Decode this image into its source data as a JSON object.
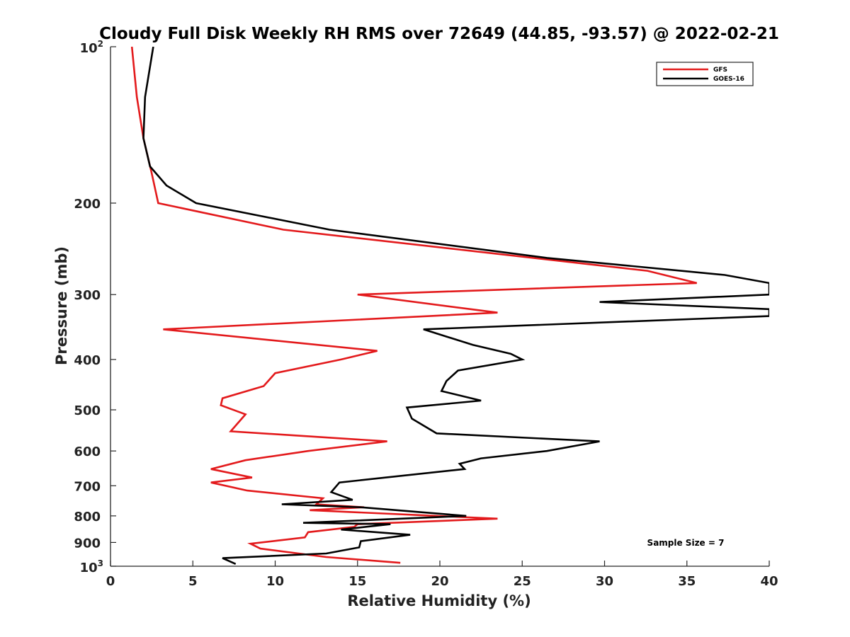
{
  "chart_data": {
    "type": "line",
    "title": "Cloudy Full Disk Weekly RH RMS over 72649 (44.85, -93.57) @ 2022-02-21",
    "xlabel": "Relative Humidity (%)",
    "ylabel": "Pressure (mb)",
    "xlim": [
      0,
      40
    ],
    "ylim": [
      100,
      1000
    ],
    "y_scale": "log",
    "y_reversed": true,
    "grid": false,
    "legend_position": "top-right",
    "xticks": [
      "0",
      "5",
      "10",
      "15",
      "20",
      "25",
      "30",
      "35",
      "40"
    ],
    "yticks": [
      {
        "value": 100,
        "base": "10",
        "exp": "2"
      },
      {
        "value": 200,
        "label": "200"
      },
      {
        "value": 300,
        "label": "300"
      },
      {
        "value": 400,
        "label": "400"
      },
      {
        "value": 500,
        "label": "500"
      },
      {
        "value": 600,
        "label": "600"
      },
      {
        "value": 700,
        "label": "700"
      },
      {
        "value": 800,
        "label": "800"
      },
      {
        "value": 900,
        "label": "900"
      },
      {
        "value": 1000,
        "base": "10",
        "exp": "3"
      }
    ],
    "annotation": "Sample Size = 7",
    "series": [
      {
        "name": "GFS",
        "color": "#e31a1c",
        "points": [
          [
            1.3,
            100
          ],
          [
            1.6,
            125
          ],
          [
            2.0,
            150
          ],
          [
            2.5,
            175
          ],
          [
            2.9,
            200
          ],
          [
            10.5,
            225
          ],
          [
            32.6,
            270
          ],
          [
            35.6,
            285
          ],
          [
            15.0,
            300
          ],
          [
            23.5,
            325
          ],
          [
            3.2,
            350
          ],
          [
            10.8,
            370
          ],
          [
            16.2,
            385
          ],
          [
            14.0,
            400
          ],
          [
            10.0,
            425
          ],
          [
            9.3,
            450
          ],
          [
            6.8,
            475
          ],
          [
            6.7,
            490
          ],
          [
            8.2,
            510
          ],
          [
            7.3,
            550
          ],
          [
            16.8,
            575
          ],
          [
            12.0,
            600
          ],
          [
            8.2,
            625
          ],
          [
            6.1,
            650
          ],
          [
            8.6,
            675
          ],
          [
            6.1,
            690
          ],
          [
            8.3,
            715
          ],
          [
            12.9,
            740
          ],
          [
            12.5,
            760
          ],
          [
            15.4,
            770
          ],
          [
            12.1,
            780
          ],
          [
            23.5,
            810
          ],
          [
            15.0,
            830
          ],
          [
            14.8,
            840
          ],
          [
            12.0,
            860
          ],
          [
            11.8,
            880
          ],
          [
            8.5,
            905
          ],
          [
            9.1,
            925
          ],
          [
            13.1,
            960
          ],
          [
            17.6,
            985
          ]
        ]
      },
      {
        "name": "GOES-16",
        "color": "#000000",
        "points": [
          [
            2.6,
            100
          ],
          [
            2.1,
            125
          ],
          [
            2.0,
            150
          ],
          [
            2.4,
            170
          ],
          [
            3.4,
            185
          ],
          [
            5.2,
            200
          ],
          [
            13.3,
            225
          ],
          [
            26.5,
            255
          ],
          [
            37.3,
            275
          ],
          [
            40.0,
            285
          ],
          [
            40.0,
            300
          ],
          [
            29.7,
            310
          ],
          [
            40.0,
            320
          ],
          [
            40.0,
            330
          ],
          [
            19.0,
            350
          ],
          [
            22.0,
            375
          ],
          [
            24.3,
            390
          ],
          [
            25.0,
            400
          ],
          [
            21.1,
            420
          ],
          [
            20.4,
            440
          ],
          [
            20.1,
            460
          ],
          [
            22.5,
            480
          ],
          [
            18.0,
            495
          ],
          [
            18.3,
            520
          ],
          [
            19.8,
            555
          ],
          [
            29.7,
            575
          ],
          [
            26.5,
            600
          ],
          [
            22.5,
            620
          ],
          [
            21.2,
            635
          ],
          [
            21.5,
            650
          ],
          [
            13.9,
            690
          ],
          [
            13.4,
            720
          ],
          [
            14.7,
            745
          ],
          [
            10.4,
            760
          ],
          [
            15.2,
            770
          ],
          [
            21.6,
            800
          ],
          [
            11.7,
            825
          ],
          [
            17.0,
            830
          ],
          [
            14.0,
            850
          ],
          [
            18.2,
            870
          ],
          [
            15.2,
            895
          ],
          [
            15.1,
            920
          ],
          [
            13.1,
            945
          ],
          [
            6.8,
            965
          ],
          [
            7.6,
            990
          ]
        ]
      }
    ]
  }
}
